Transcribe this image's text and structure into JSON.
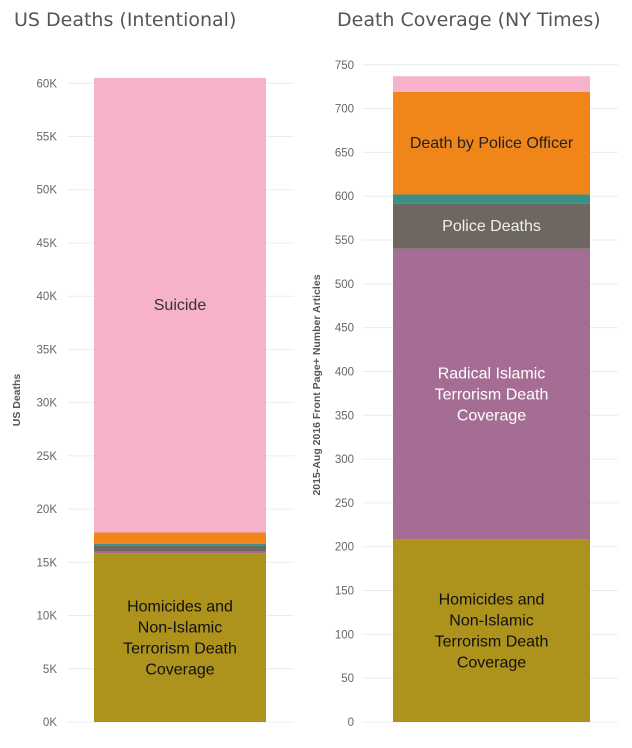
{
  "chart_data": [
    {
      "type": "bar",
      "stacked": true,
      "title": "US Deaths (Intentional)",
      "ylabel": "US Deaths",
      "ylim": [
        0,
        62000
      ],
      "yticks": [
        0,
        5000,
        10000,
        15000,
        20000,
        25000,
        30000,
        35000,
        40000,
        45000,
        50000,
        55000,
        60000
      ],
      "ytick_labels": [
        "0K",
        "5K",
        "10K",
        "15K",
        "20K",
        "25K",
        "30K",
        "35K",
        "40K",
        "45K",
        "50K",
        "55K",
        "60K"
      ],
      "grid": true,
      "segments": [
        {
          "name": "Homicides and Non-Islamic Terrorism Death Coverage",
          "value": 15800,
          "color": "#ad921c",
          "label_lines": [
            "Homicides and",
            "Non-Islamic",
            "Terrorism Death",
            "Coverage"
          ],
          "label_color": "#111111"
        },
        {
          "name": "",
          "value": 200,
          "color": "#a66d94",
          "label_lines": []
        },
        {
          "name": "",
          "value": 600,
          "color": "#6e6761",
          "label_lines": []
        },
        {
          "name": "",
          "value": 150,
          "color": "#3a8f86",
          "label_lines": []
        },
        {
          "name": "",
          "value": 1050,
          "color": "#f08519",
          "label_lines": []
        },
        {
          "name": "Suicide",
          "value": 42700,
          "color": "#f6b2cb",
          "label_lines": [
            "Suicide"
          ],
          "label_color": "#333333"
        }
      ]
    },
    {
      "type": "bar",
      "stacked": true,
      "title": "Death Coverage (NY Times)",
      "ylabel": "2015-Aug 2016 Front Page+ Number Articles",
      "ylim": [
        0,
        760
      ],
      "yticks": [
        0,
        50,
        100,
        150,
        200,
        250,
        300,
        350,
        400,
        450,
        500,
        550,
        600,
        650,
        700,
        750
      ],
      "ytick_labels": [
        "0",
        "50",
        "100",
        "150",
        "200",
        "250",
        "300",
        "350",
        "400",
        "450",
        "500",
        "550",
        "600",
        "650",
        "700",
        "750"
      ],
      "grid": true,
      "segments": [
        {
          "name": "Homicides and Non-Islamic Terrorism Death Coverage",
          "value": 208,
          "color": "#ad921c",
          "label_lines": [
            "Homicides and",
            "Non-Islamic",
            "Terrorism Death",
            "Coverage"
          ],
          "label_color": "#111111"
        },
        {
          "name": "Radical Islamic Terrorism Death Coverage",
          "value": 332,
          "color": "#a66d94",
          "label_lines": [
            "Radical Islamic",
            "Terrorism Death",
            "Coverage"
          ],
          "label_color": "#ffffff"
        },
        {
          "name": "Police Deaths",
          "value": 52,
          "color": "#6e6761",
          "label_lines": [
            "Police Deaths"
          ],
          "label_color": "#eeeeee"
        },
        {
          "name": "",
          "value": 10,
          "color": "#3a8f86",
          "label_lines": []
        },
        {
          "name": "Death by Police Officer",
          "value": 117,
          "color": "#f08519",
          "label_lines": [
            "Death by Police Officer"
          ],
          "label_color": "#222222"
        },
        {
          "name": "",
          "value": 18,
          "color": "#f6b2cb",
          "label_lines": []
        }
      ]
    }
  ]
}
